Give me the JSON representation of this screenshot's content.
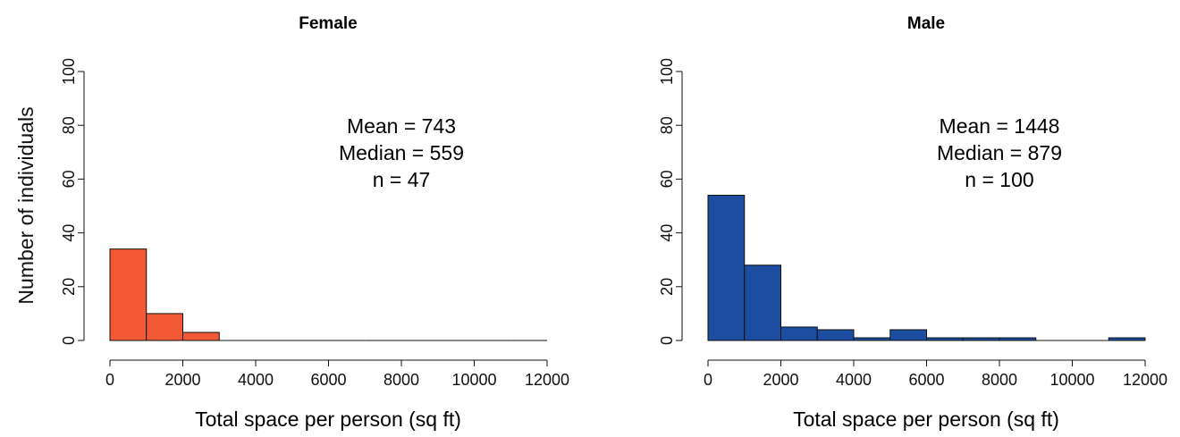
{
  "shared": {
    "ylabel": "Number of individuals"
  },
  "chart_data": [
    {
      "type": "bar",
      "title": "Female",
      "xlabel": "Total space per person (sq ft)",
      "ylabel": "Number of individuals",
      "xlim": [
        0,
        12000
      ],
      "ylim": [
        0,
        100
      ],
      "bin_width": 1000,
      "bins_start": [
        0,
        1000,
        2000,
        3000,
        4000,
        5000,
        6000,
        7000,
        8000,
        9000,
        10000,
        11000
      ],
      "values": [
        34,
        10,
        3,
        0,
        0,
        0,
        0,
        0,
        0,
        0,
        0,
        0
      ],
      "color": "#F15A35",
      "xticks": [
        "0",
        "2000",
        "4000",
        "6000",
        "8000",
        "10000",
        "12000"
      ],
      "yticks": [
        "0",
        "20",
        "40",
        "60",
        "80",
        "100"
      ],
      "stats": [
        "Mean = 743",
        "Median = 559",
        "n = 47"
      ]
    },
    {
      "type": "bar",
      "title": "Male",
      "xlabel": "Total space per person (sq ft)",
      "ylabel": "",
      "xlim": [
        0,
        12000
      ],
      "ylim": [
        0,
        100
      ],
      "bin_width": 1000,
      "bins_start": [
        0,
        1000,
        2000,
        3000,
        4000,
        5000,
        6000,
        7000,
        8000,
        9000,
        10000,
        11000
      ],
      "values": [
        54,
        28,
        5,
        4,
        1,
        4,
        1,
        1,
        1,
        0,
        0,
        1
      ],
      "color": "#1C4DA1",
      "xticks": [
        "0",
        "2000",
        "4000",
        "6000",
        "8000",
        "10000",
        "12000"
      ],
      "yticks": [
        "0",
        "20",
        "40",
        "60",
        "80",
        "100"
      ],
      "stats": [
        "Mean = 1448",
        "Median = 879",
        "n = 100"
      ]
    }
  ]
}
